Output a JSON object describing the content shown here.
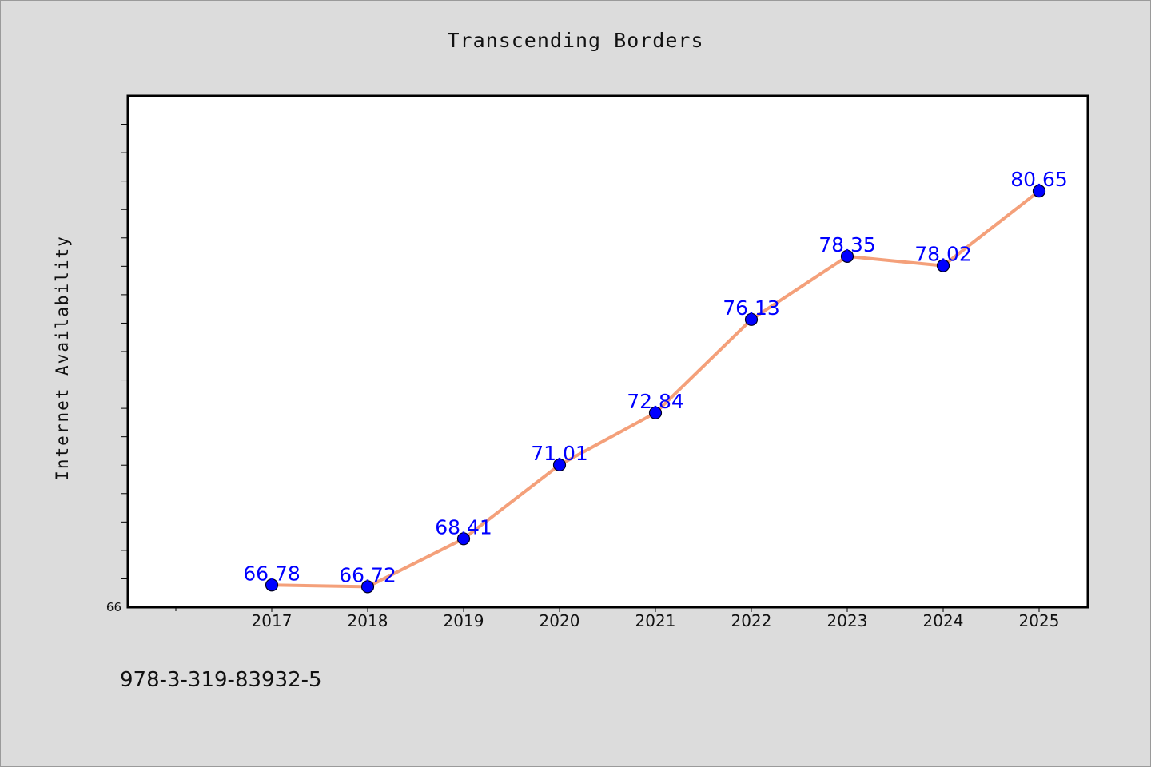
{
  "chart_data": {
    "type": "line",
    "title": "Transcending Borders",
    "xlabel": "",
    "ylabel": "Internet Availability",
    "categories": [
      "2017",
      "2018",
      "2019",
      "2020",
      "2021",
      "2022",
      "2023",
      "2024",
      "2025"
    ],
    "values": [
      66.78,
      66.72,
      68.41,
      71.01,
      72.84,
      76.13,
      78.35,
      78.02,
      80.65
    ],
    "data_labels": [
      "66.78",
      "66.72",
      "68.41",
      "71.01",
      "72.84",
      "76.13",
      "78.35",
      "78.02",
      "80.65"
    ],
    "ytick_labels": [
      "66"
    ],
    "ylim": [
      66,
      84
    ],
    "grid": false,
    "line_color": "#f4a07a",
    "marker_color": "#0000ff",
    "label_color": "#0000ff"
  },
  "footer": {
    "isbn": "978-3-319-83932-5"
  }
}
